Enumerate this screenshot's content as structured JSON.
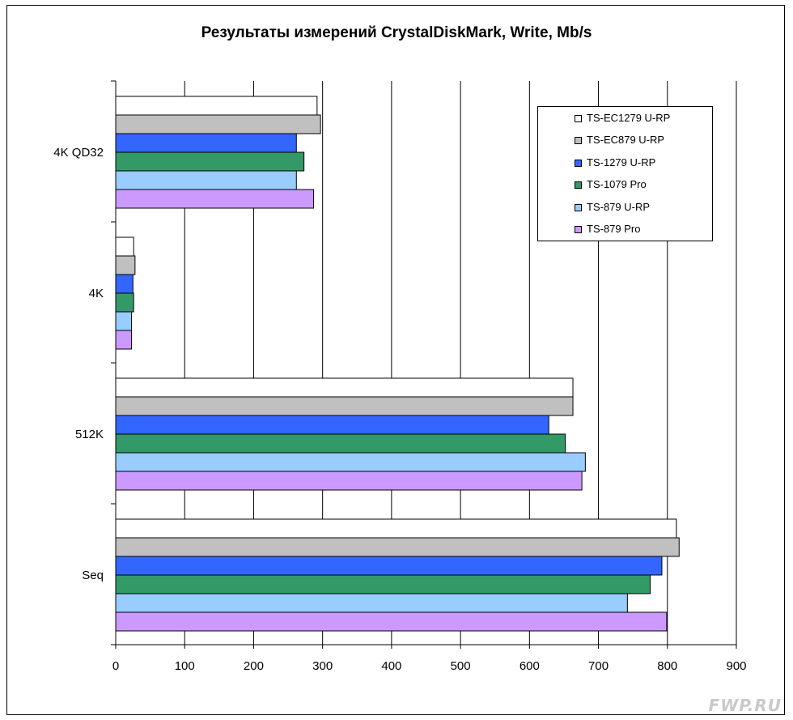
{
  "chart_data": {
    "type": "bar",
    "orientation": "horizontal",
    "title": "Результаты измерений CrystalDiskMark, Write, Mb/s",
    "categories": [
      "4K QD32",
      "4K",
      "512K",
      "Seq"
    ],
    "xlim": [
      0,
      900
    ],
    "xticks": [
      0,
      100,
      200,
      300,
      400,
      500,
      600,
      700,
      800,
      900
    ],
    "grid": true,
    "legend_position": "top-right",
    "series": [
      {
        "name": "TS-EC1279 U-RP",
        "color": "#ffffff",
        "values": [
          292,
          26,
          663,
          813
        ]
      },
      {
        "name": "TS-EC879 U-RP",
        "color": "#c0c0c0",
        "values": [
          297,
          28,
          663,
          817
        ]
      },
      {
        "name": "TS-1279 U-RP",
        "color": "#3366ff",
        "values": [
          262,
          25,
          628,
          792
        ]
      },
      {
        "name": "TS-1079 Pro",
        "color": "#339966",
        "values": [
          273,
          26,
          652,
          775
        ]
      },
      {
        "name": "TS-879 U-RP",
        "color": "#99ccff",
        "values": [
          262,
          23,
          681,
          742
        ]
      },
      {
        "name": "TS-879 Pro",
        "color": "#cc99ff",
        "values": [
          287,
          23,
          676,
          799
        ]
      }
    ]
  },
  "watermark": "FWP.RU"
}
